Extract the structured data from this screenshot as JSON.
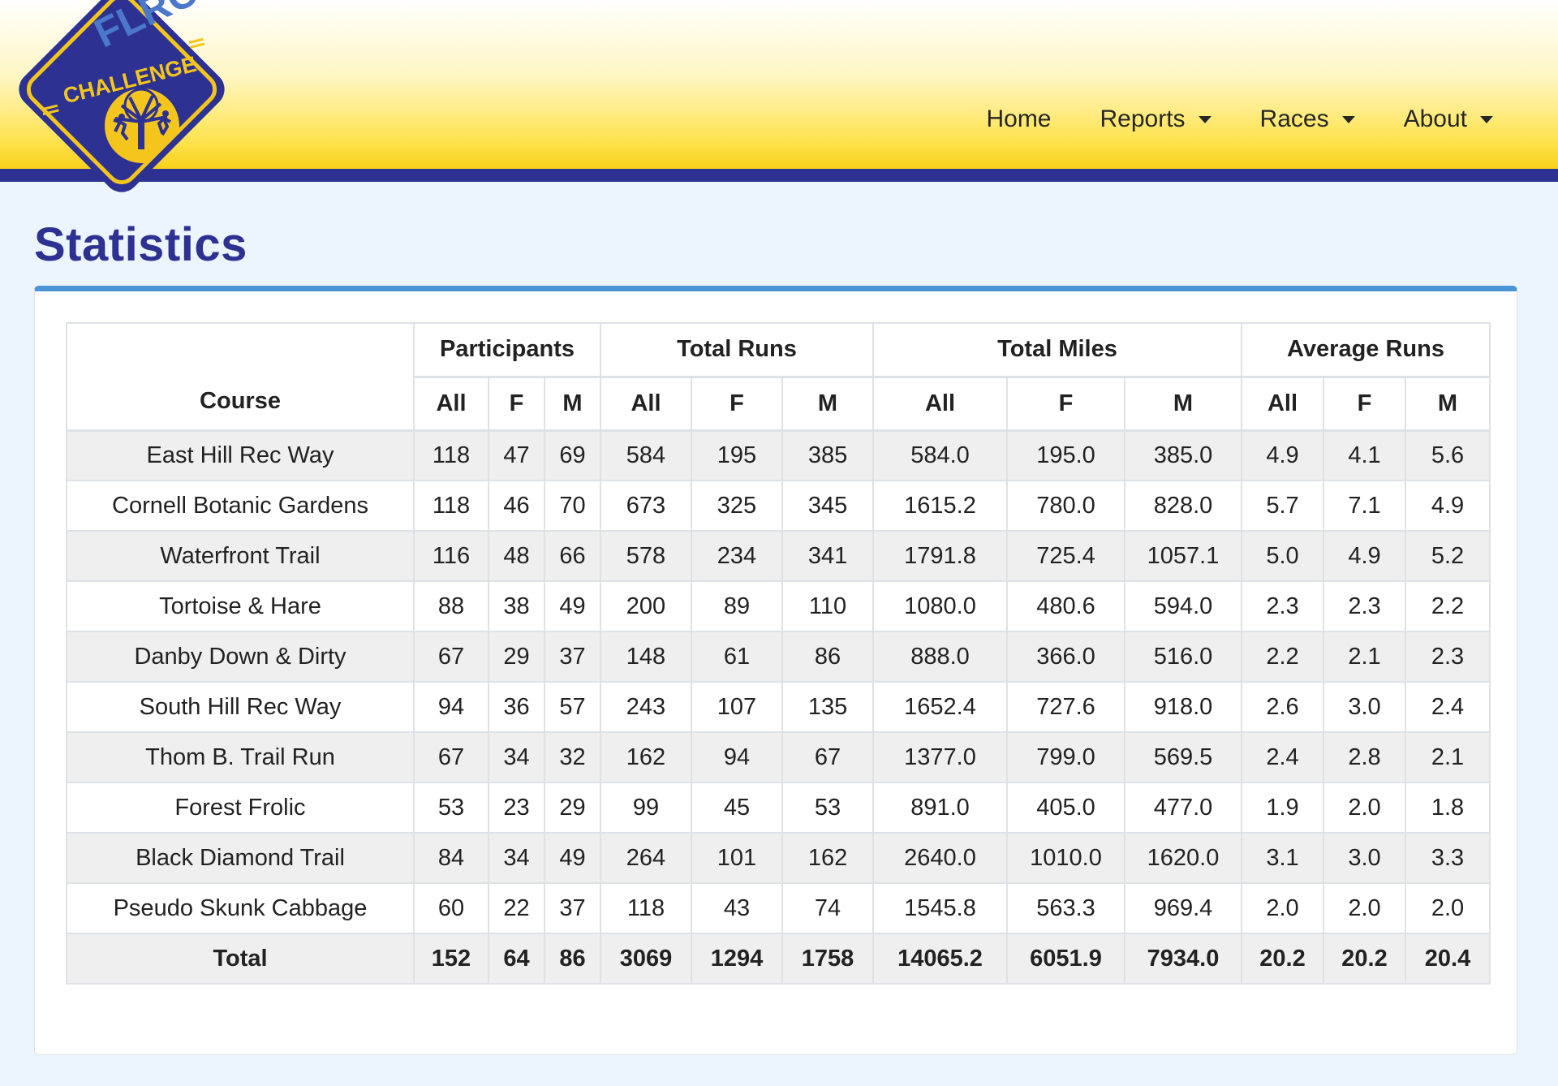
{
  "brand": {
    "logo_text_top": "FLRC",
    "logo_text_bottom": "CHALLENGE",
    "colors": {
      "navy": "#2d3192",
      "gold": "#f8d21a",
      "accent_blue": "#4b95d4",
      "page_bg": "#ecf5fd"
    }
  },
  "nav": {
    "home": "Home",
    "reports": "Reports",
    "races": "Races",
    "about": "About"
  },
  "page": {
    "title": "Statistics"
  },
  "table": {
    "course_header": "Course",
    "groups": [
      "Participants",
      "Total Runs",
      "Total Miles",
      "Average Runs"
    ],
    "subheaders": [
      "All",
      "F",
      "M",
      "All",
      "F",
      "M",
      "All",
      "F",
      "M",
      "All",
      "F",
      "M"
    ],
    "rows": [
      {
        "course": "East Hill Rec Way",
        "values": [
          "118",
          "47",
          "69",
          "584",
          "195",
          "385",
          "584.0",
          "195.0",
          "385.0",
          "4.9",
          "4.1",
          "5.6"
        ]
      },
      {
        "course": "Cornell Botanic Gardens",
        "values": [
          "118",
          "46",
          "70",
          "673",
          "325",
          "345",
          "1615.2",
          "780.0",
          "828.0",
          "5.7",
          "7.1",
          "4.9"
        ]
      },
      {
        "course": "Waterfront Trail",
        "values": [
          "116",
          "48",
          "66",
          "578",
          "234",
          "341",
          "1791.8",
          "725.4",
          "1057.1",
          "5.0",
          "4.9",
          "5.2"
        ]
      },
      {
        "course": "Tortoise & Hare",
        "values": [
          "88",
          "38",
          "49",
          "200",
          "89",
          "110",
          "1080.0",
          "480.6",
          "594.0",
          "2.3",
          "2.3",
          "2.2"
        ]
      },
      {
        "course": "Danby Down & Dirty",
        "values": [
          "67",
          "29",
          "37",
          "148",
          "61",
          "86",
          "888.0",
          "366.0",
          "516.0",
          "2.2",
          "2.1",
          "2.3"
        ]
      },
      {
        "course": "South Hill Rec Way",
        "values": [
          "94",
          "36",
          "57",
          "243",
          "107",
          "135",
          "1652.4",
          "727.6",
          "918.0",
          "2.6",
          "3.0",
          "2.4"
        ]
      },
      {
        "course": "Thom B. Trail Run",
        "values": [
          "67",
          "34",
          "32",
          "162",
          "94",
          "67",
          "1377.0",
          "799.0",
          "569.5",
          "2.4",
          "2.8",
          "2.1"
        ]
      },
      {
        "course": "Forest Frolic",
        "values": [
          "53",
          "23",
          "29",
          "99",
          "45",
          "53",
          "891.0",
          "405.0",
          "477.0",
          "1.9",
          "2.0",
          "1.8"
        ]
      },
      {
        "course": "Black Diamond Trail",
        "values": [
          "84",
          "34",
          "49",
          "264",
          "101",
          "162",
          "2640.0",
          "1010.0",
          "1620.0",
          "3.1",
          "3.0",
          "3.3"
        ]
      },
      {
        "course": "Pseudo Skunk Cabbage",
        "values": [
          "60",
          "22",
          "37",
          "118",
          "43",
          "74",
          "1545.8",
          "563.3",
          "969.4",
          "2.0",
          "2.0",
          "2.0"
        ]
      }
    ],
    "total": {
      "course": "Total",
      "values": [
        "152",
        "64",
        "86",
        "3069",
        "1294",
        "1758",
        "14065.2",
        "6051.9",
        "7934.0",
        "20.2",
        "20.2",
        "20.4"
      ]
    }
  }
}
